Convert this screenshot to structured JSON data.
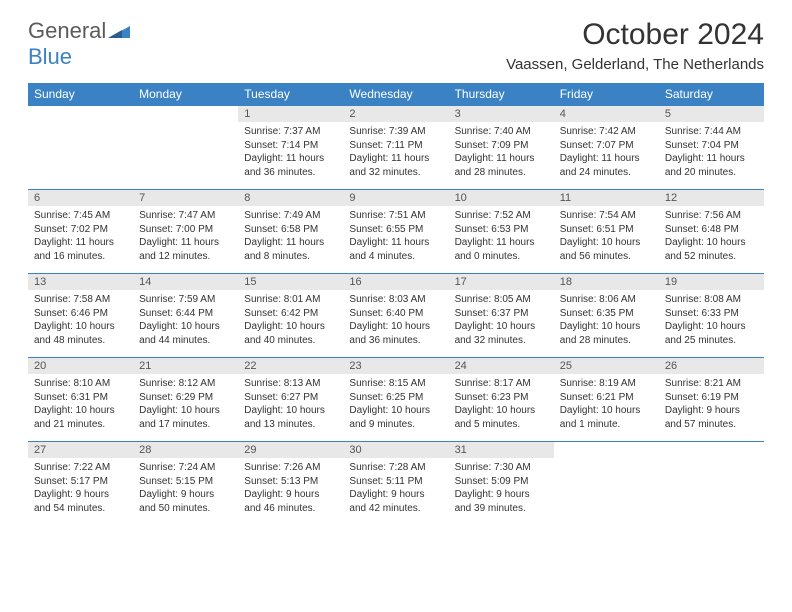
{
  "logo": {
    "text1": "General",
    "text2": "Blue"
  },
  "title": "October 2024",
  "location": "Vaassen, Gelderland, The Netherlands",
  "colors": {
    "header_bg": "#3b82c4",
    "header_text": "#ffffff",
    "daynum_bg": "#e8e8e8",
    "daynum_text": "#555555",
    "body_text": "#333333",
    "logo_gray": "#5b5b5b",
    "logo_blue": "#3b82c4",
    "page_bg": "#ffffff"
  },
  "typography": {
    "title_fontsize": 30,
    "location_fontsize": 15,
    "header_fontsize": 12,
    "daynum_fontsize": 11,
    "cell_fontsize": 10
  },
  "dayNames": [
    "Sunday",
    "Monday",
    "Tuesday",
    "Wednesday",
    "Thursday",
    "Friday",
    "Saturday"
  ],
  "weeks": [
    {
      "nums": [
        "",
        "",
        "1",
        "2",
        "3",
        "4",
        "5"
      ],
      "cells": [
        "",
        "",
        "Sunrise: 7:37 AM\nSunset: 7:14 PM\nDaylight: 11 hours and 36 minutes.",
        "Sunrise: 7:39 AM\nSunset: 7:11 PM\nDaylight: 11 hours and 32 minutes.",
        "Sunrise: 7:40 AM\nSunset: 7:09 PM\nDaylight: 11 hours and 28 minutes.",
        "Sunrise: 7:42 AM\nSunset: 7:07 PM\nDaylight: 11 hours and 24 minutes.",
        "Sunrise: 7:44 AM\nSunset: 7:04 PM\nDaylight: 11 hours and 20 minutes."
      ]
    },
    {
      "nums": [
        "6",
        "7",
        "8",
        "9",
        "10",
        "11",
        "12"
      ],
      "cells": [
        "Sunrise: 7:45 AM\nSunset: 7:02 PM\nDaylight: 11 hours and 16 minutes.",
        "Sunrise: 7:47 AM\nSunset: 7:00 PM\nDaylight: 11 hours and 12 minutes.",
        "Sunrise: 7:49 AM\nSunset: 6:58 PM\nDaylight: 11 hours and 8 minutes.",
        "Sunrise: 7:51 AM\nSunset: 6:55 PM\nDaylight: 11 hours and 4 minutes.",
        "Sunrise: 7:52 AM\nSunset: 6:53 PM\nDaylight: 11 hours and 0 minutes.",
        "Sunrise: 7:54 AM\nSunset: 6:51 PM\nDaylight: 10 hours and 56 minutes.",
        "Sunrise: 7:56 AM\nSunset: 6:48 PM\nDaylight: 10 hours and 52 minutes."
      ]
    },
    {
      "nums": [
        "13",
        "14",
        "15",
        "16",
        "17",
        "18",
        "19"
      ],
      "cells": [
        "Sunrise: 7:58 AM\nSunset: 6:46 PM\nDaylight: 10 hours and 48 minutes.",
        "Sunrise: 7:59 AM\nSunset: 6:44 PM\nDaylight: 10 hours and 44 minutes.",
        "Sunrise: 8:01 AM\nSunset: 6:42 PM\nDaylight: 10 hours and 40 minutes.",
        "Sunrise: 8:03 AM\nSunset: 6:40 PM\nDaylight: 10 hours and 36 minutes.",
        "Sunrise: 8:05 AM\nSunset: 6:37 PM\nDaylight: 10 hours and 32 minutes.",
        "Sunrise: 8:06 AM\nSunset: 6:35 PM\nDaylight: 10 hours and 28 minutes.",
        "Sunrise: 8:08 AM\nSunset: 6:33 PM\nDaylight: 10 hours and 25 minutes."
      ]
    },
    {
      "nums": [
        "20",
        "21",
        "22",
        "23",
        "24",
        "25",
        "26"
      ],
      "cells": [
        "Sunrise: 8:10 AM\nSunset: 6:31 PM\nDaylight: 10 hours and 21 minutes.",
        "Sunrise: 8:12 AM\nSunset: 6:29 PM\nDaylight: 10 hours and 17 minutes.",
        "Sunrise: 8:13 AM\nSunset: 6:27 PM\nDaylight: 10 hours and 13 minutes.",
        "Sunrise: 8:15 AM\nSunset: 6:25 PM\nDaylight: 10 hours and 9 minutes.",
        "Sunrise: 8:17 AM\nSunset: 6:23 PM\nDaylight: 10 hours and 5 minutes.",
        "Sunrise: 8:19 AM\nSunset: 6:21 PM\nDaylight: 10 hours and 1 minute.",
        "Sunrise: 8:21 AM\nSunset: 6:19 PM\nDaylight: 9 hours and 57 minutes."
      ]
    },
    {
      "nums": [
        "27",
        "28",
        "29",
        "30",
        "31",
        "",
        ""
      ],
      "cells": [
        "Sunrise: 7:22 AM\nSunset: 5:17 PM\nDaylight: 9 hours and 54 minutes.",
        "Sunrise: 7:24 AM\nSunset: 5:15 PM\nDaylight: 9 hours and 50 minutes.",
        "Sunrise: 7:26 AM\nSunset: 5:13 PM\nDaylight: 9 hours and 46 minutes.",
        "Sunrise: 7:28 AM\nSunset: 5:11 PM\nDaylight: 9 hours and 42 minutes.",
        "Sunrise: 7:30 AM\nSunset: 5:09 PM\nDaylight: 9 hours and 39 minutes.",
        "",
        ""
      ]
    }
  ]
}
